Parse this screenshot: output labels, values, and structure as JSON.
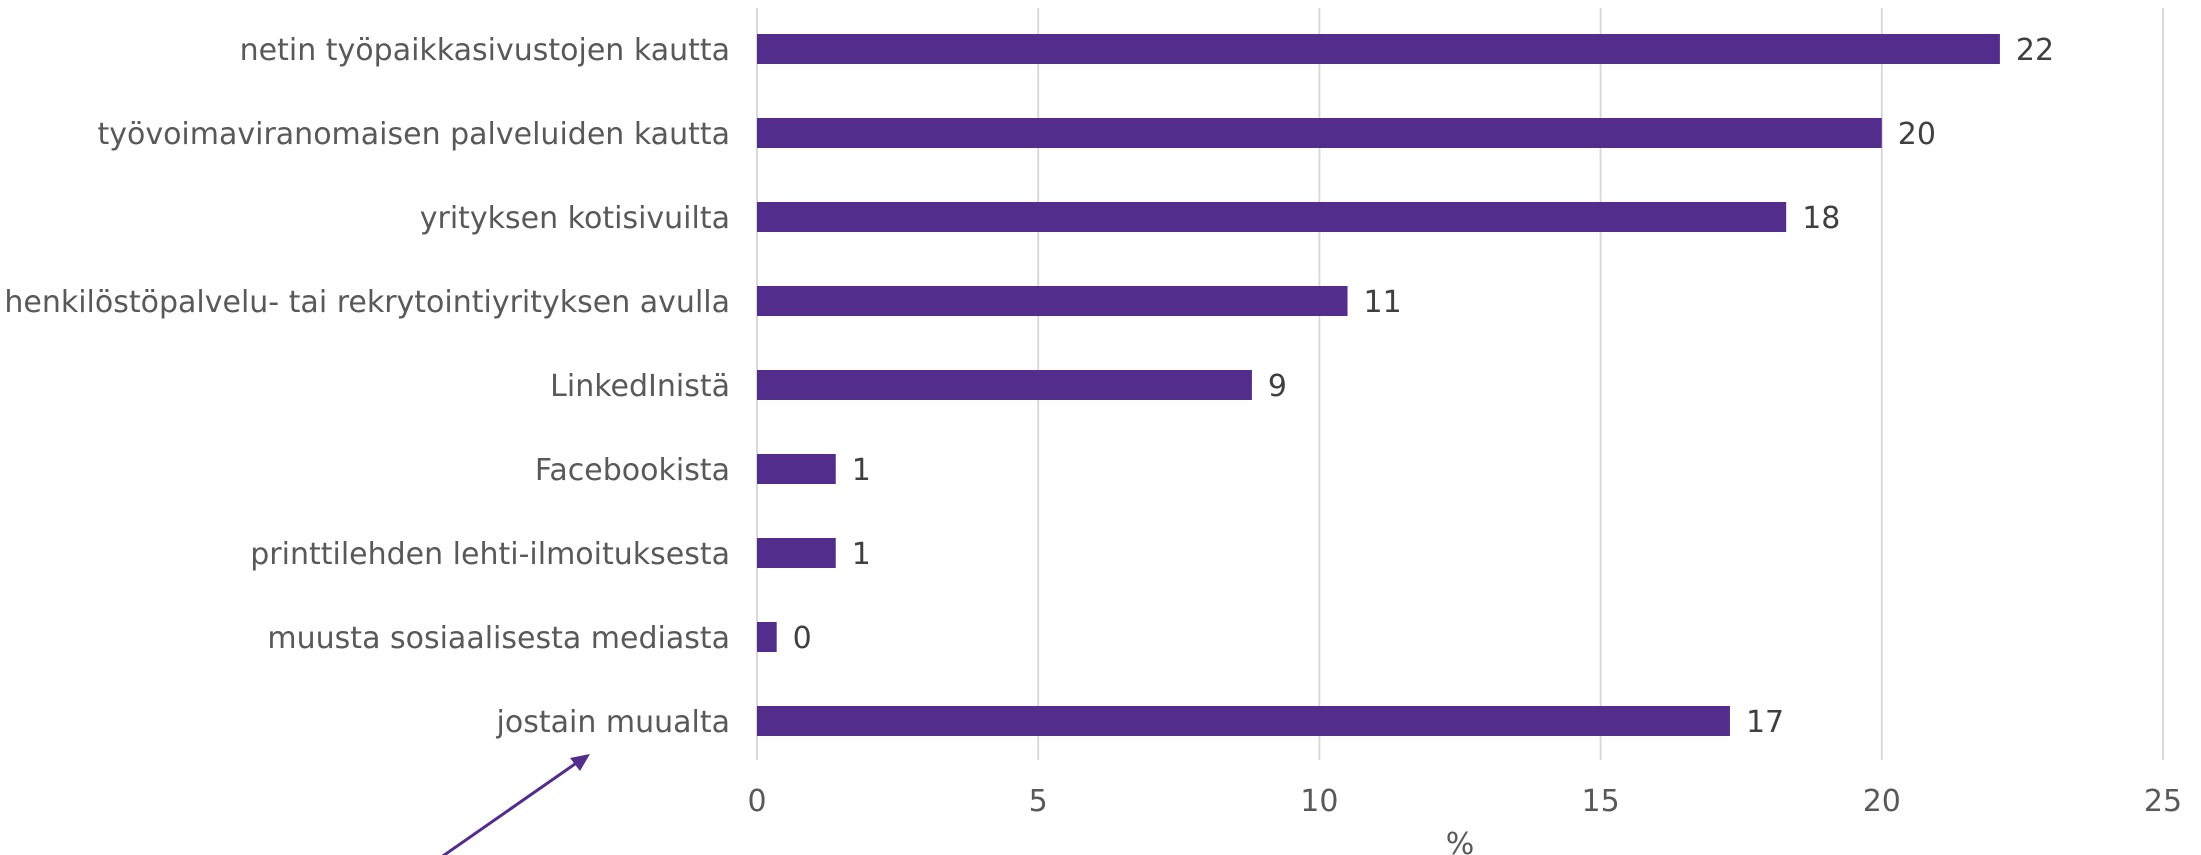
{
  "chart_data": {
    "type": "bar",
    "orientation": "horizontal",
    "categories": [
      "netin työpaikkasivustojen kautta",
      "työvoimaviranomaisen palveluiden kautta",
      "yrityksen kotisivuilta",
      "henkilöstöpalvelu- tai rekrytointiyrityksen avulla",
      "LinkedInistä",
      "Facebookista",
      "printtilehden lehti-ilmoituksesta",
      "muusta sosiaalisesta mediasta",
      "jostain muualta"
    ],
    "values": [
      22.1,
      20.0,
      18.3,
      10.5,
      8.8,
      1.4,
      1.4,
      0.35,
      17.3
    ],
    "data_labels": [
      "22",
      "20",
      "18",
      "11",
      "9",
      "1",
      "1",
      "0",
      "17"
    ],
    "xlabel": "%",
    "xlim": [
      0,
      25
    ],
    "xticks": [
      0,
      5,
      10,
      15,
      20,
      25
    ],
    "grid": "vertical",
    "legend": "none",
    "bar_color": "#532d8c",
    "annotation_arrow_color": "#532d8c"
  }
}
